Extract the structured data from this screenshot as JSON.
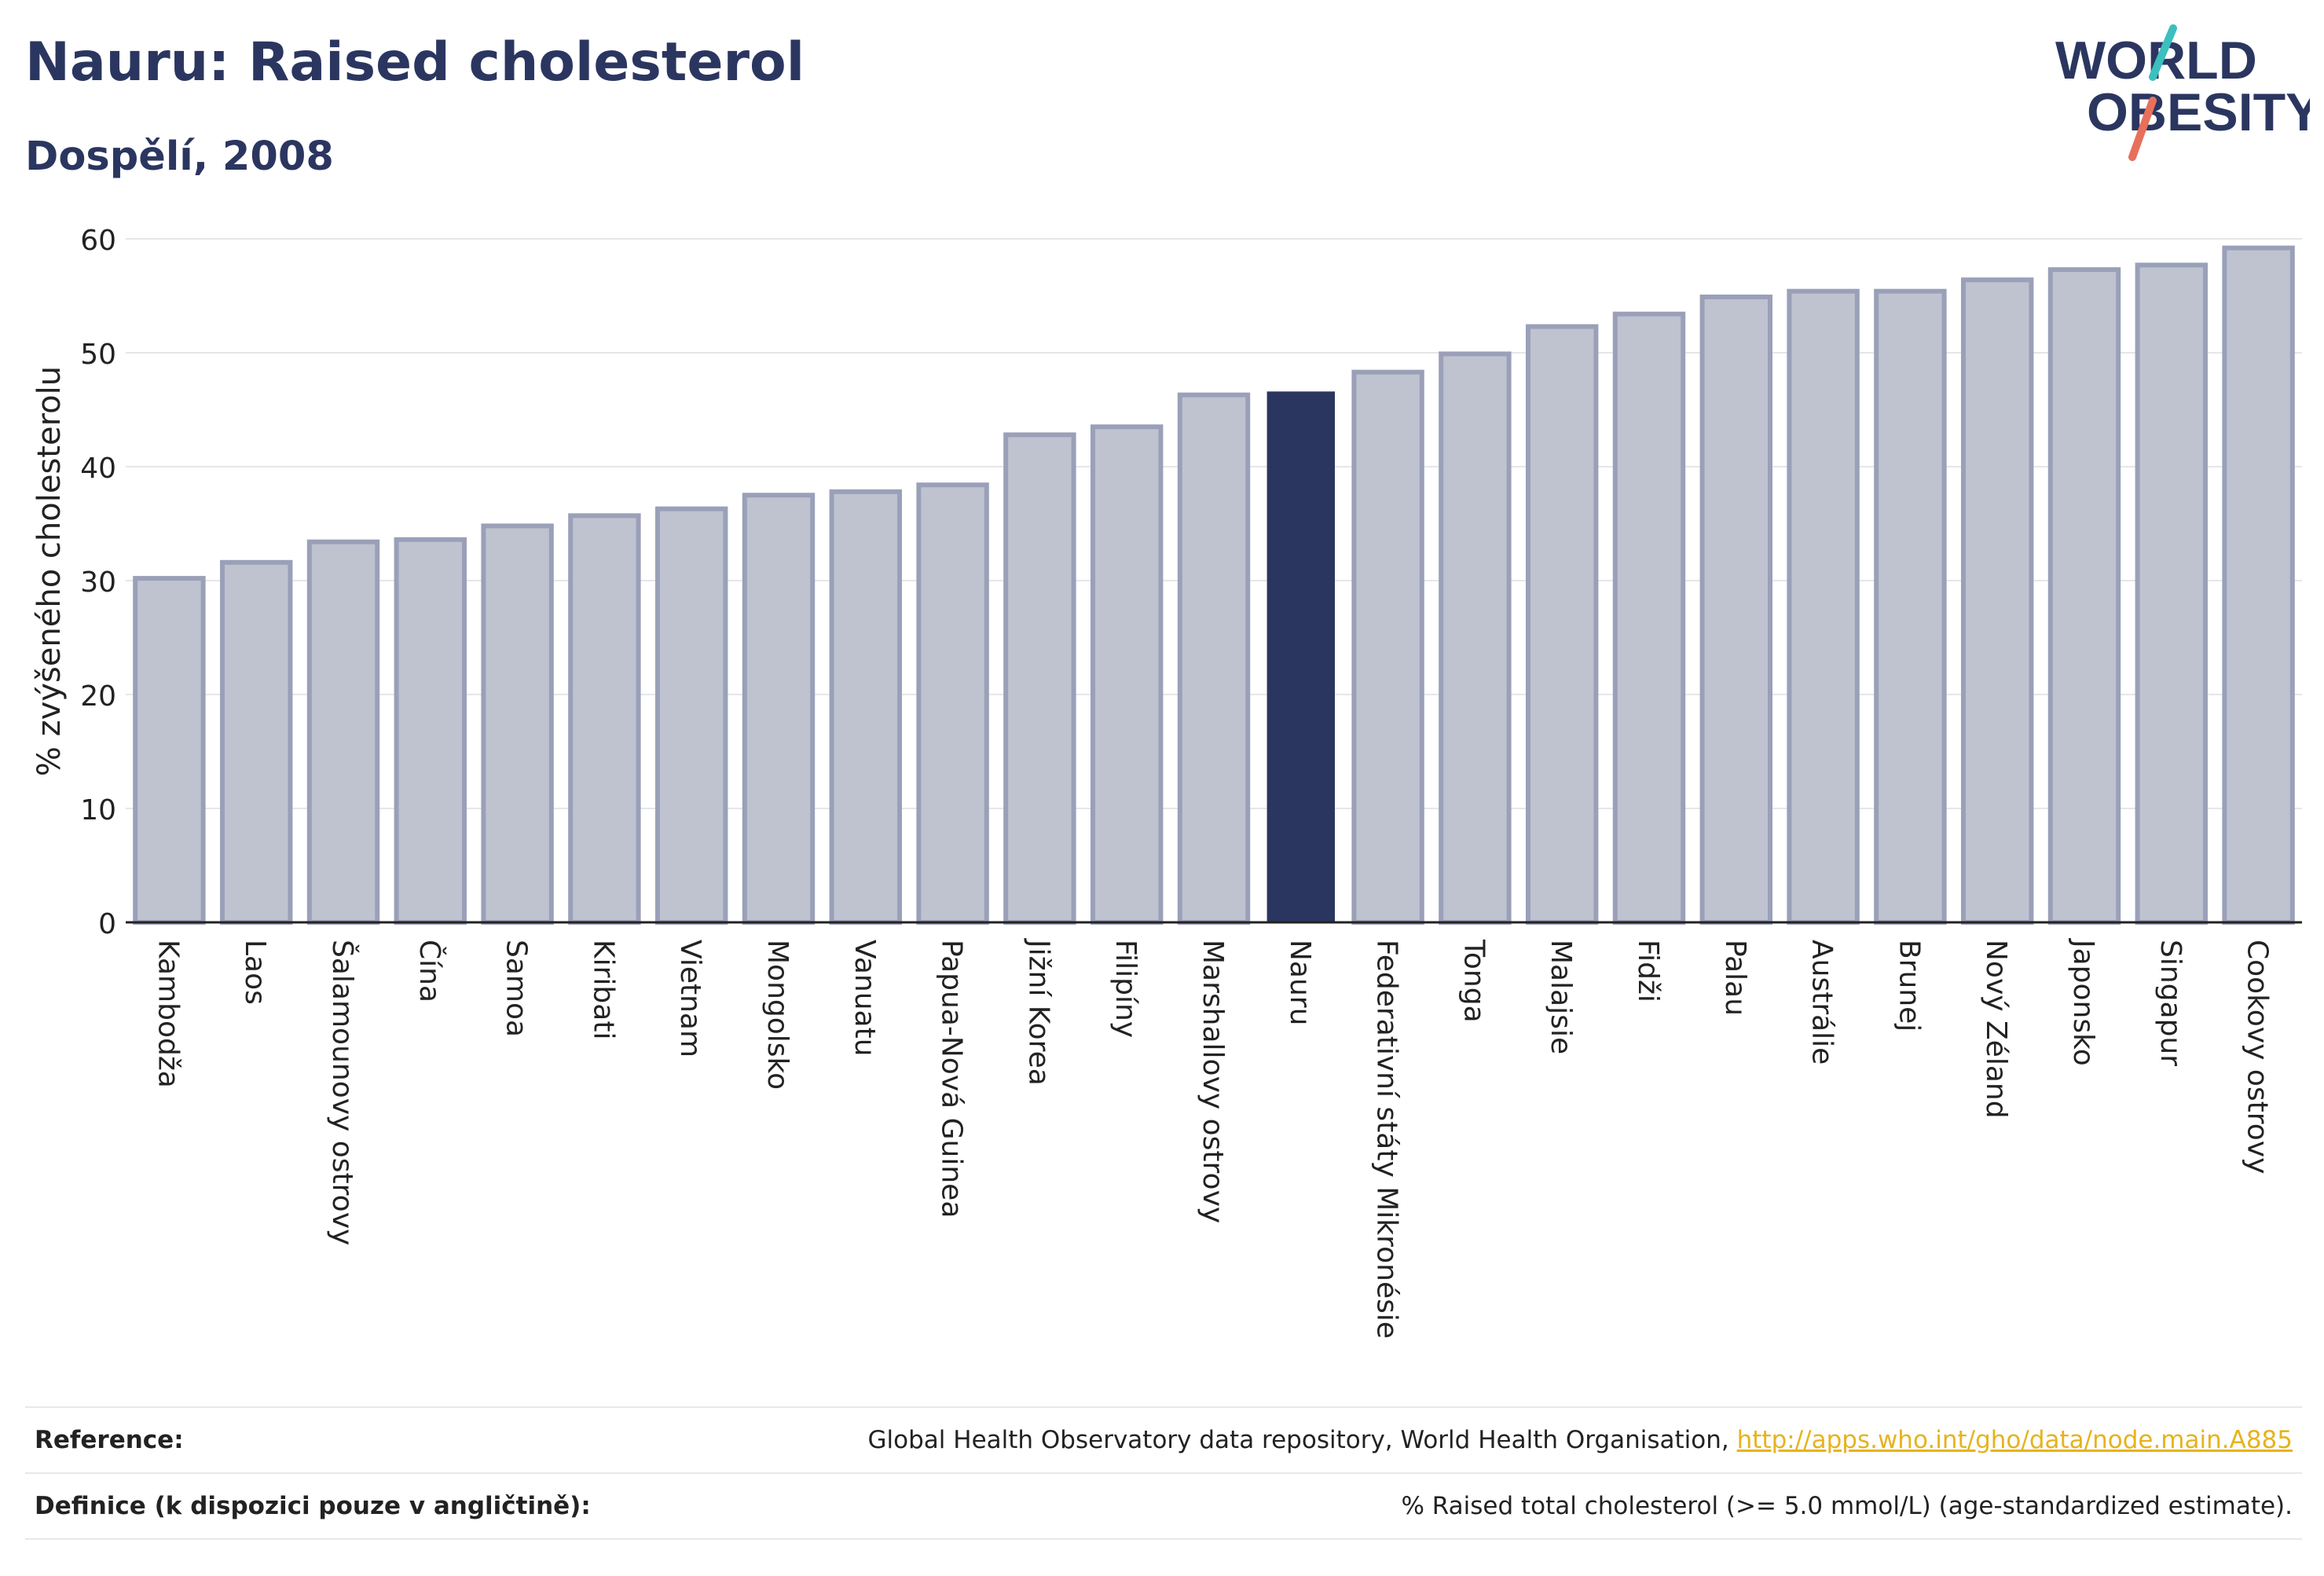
{
  "header": {
    "title": "Nauru: Raised cholesterol",
    "subtitle": "Dospělí, 2008"
  },
  "logo": {
    "line1": "WORLD",
    "line2": "OBESITY",
    "accent_colors": [
      "#3bbfbf",
      "#e8705a"
    ]
  },
  "colors": {
    "bar": "#bfc3d0",
    "bar_stroke": "#9aa0b8",
    "highlight": "#2b3660",
    "grid": "#e6e6ea",
    "axis": "#222222",
    "link": "#e6b31e"
  },
  "chart_data": {
    "type": "bar",
    "ylabel": "% zvýšeného cholesterolu",
    "ylim": [
      0,
      60
    ],
    "yticks": [
      0,
      10,
      20,
      30,
      40,
      50,
      60
    ],
    "highlight": "Nauru",
    "grid": true,
    "categories": [
      "Kambodža",
      "Laos",
      "Šalamounovy ostrovy",
      "Čína",
      "Samoa",
      "Kiribati",
      "Vietnam",
      "Mongolsko",
      "Vanuatu",
      "Papua-Nová Guinea",
      "Jižní Korea",
      "Filipíny",
      "Marshallovy ostrovy",
      "Nauru",
      "Federativní státy Mikronésie",
      "Tonga",
      "Malajsie",
      "Fidži",
      "Palau",
      "Austrálie",
      "Brunej",
      "Nový Zéland",
      "Japonsko",
      "Singapur",
      "Cookovy ostrovy"
    ],
    "values": [
      30.2,
      31.6,
      33.4,
      33.6,
      34.8,
      35.7,
      36.3,
      37.5,
      37.8,
      38.4,
      42.8,
      43.5,
      46.3,
      46.6,
      48.3,
      49.9,
      52.3,
      53.4,
      54.9,
      55.4,
      55.4,
      56.4,
      57.3,
      57.7,
      59.2
    ]
  },
  "reference": {
    "reference_label": "Reference:",
    "reference_text": "Global Health Observatory data repository, World Health Organisation, ",
    "reference_link": "http://apps.who.int/gho/data/node.main.A885",
    "definition_label": "Definice (k dispozici pouze v angličtině):",
    "definition_text": "% Raised total cholesterol (>= 5.0 mmol/L) (age-standardized estimate)."
  }
}
